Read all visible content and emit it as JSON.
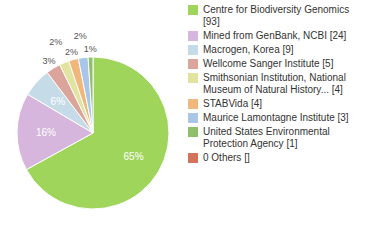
{
  "chart_data": {
    "type": "pie",
    "categories": [
      "Centre for Biodiversity Genomics [93]",
      "Mined from GenBank, NCBI [24]",
      "Macrogen, Korea [9]",
      "Wellcome Sanger Institute [5]",
      "Smithsonian Institution, National Museum of Natural History... [4]",
      "STABVida [4]",
      "Maurice Lamontagne Institute [3]",
      "United States Environmental Protection Agency [1]",
      "0 Others []"
    ],
    "values": [
      65,
      16,
      6,
      3,
      2,
      2,
      2,
      1,
      0
    ],
    "value_labels": [
      "65%",
      "16%",
      "6%",
      "3%",
      "2%",
      "2%",
      "2%",
      "1%",
      null
    ],
    "colors": [
      "#9fd55b",
      "#d6b6dc",
      "#c6dbe8",
      "#dba59c",
      "#e2e3a0",
      "#f0b67a",
      "#a9c6e8",
      "#8fbf6a",
      "#d4735a"
    ],
    "data_labels": true,
    "legend": "right"
  }
}
